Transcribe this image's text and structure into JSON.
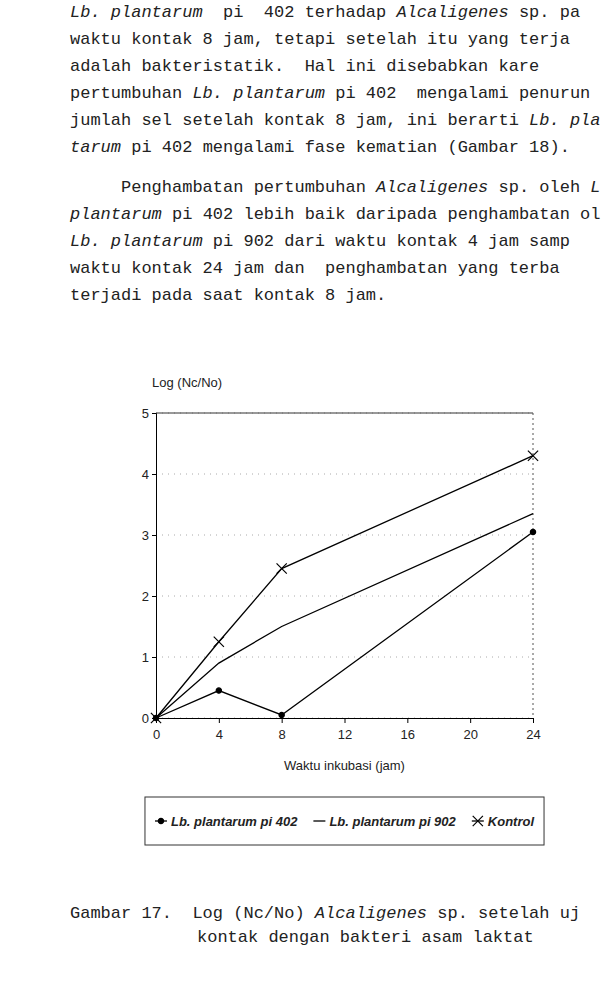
{
  "paragraphs": [
    {
      "lines": [
        [
          {
            "text": "Lb. plantarum",
            "italic": true
          },
          {
            "text": "  pi  402 terhadap "
          },
          {
            "text": "Alcaligenes",
            "italic": true
          },
          {
            "text": " sp. pa"
          }
        ],
        [
          {
            "text": "waktu kontak 8 jam, tetapi setelah itu yang terja"
          }
        ],
        [
          {
            "text": "adalah bakteristatik.  Hal ini disebabkan kare"
          }
        ],
        [
          {
            "text": "pertumbuhan "
          },
          {
            "text": "Lb. plantarum",
            "italic": true
          },
          {
            "text": " pi 402  mengalami penurun"
          }
        ],
        [
          {
            "text": "jumlah sel setelah kontak 8 jam, ini berarti "
          },
          {
            "text": "Lb. pla",
            "italic": true
          }
        ],
        [
          {
            "text": "tarum",
            "italic": true
          },
          {
            "text": " pi 402 mengalami fase kematian (Gambar 18)."
          }
        ]
      ]
    },
    {
      "lines": [
        [
          {
            "text": "     Penghambatan pertumbuhan "
          },
          {
            "text": "Alcaligenes",
            "italic": true
          },
          {
            "text": " sp. oleh "
          },
          {
            "text": "L",
            "italic": true
          }
        ],
        [
          {
            "text": "plantarum",
            "italic": true
          },
          {
            "text": " pi 402 lebih baik daripada penghambatan ol"
          }
        ],
        [
          {
            "text": "Lb. plantarum",
            "italic": true
          },
          {
            "text": " pi 902 dari waktu kontak 4 jam samp"
          }
        ],
        [
          {
            "text": "waktu kontak 24 jam dan  penghambatan yang terba"
          }
        ],
        [
          {
            "text": "terjadi pada saat kontak 8 jam."
          }
        ]
      ]
    }
  ],
  "chart_data": {
    "type": "line",
    "x_label": "Waktu inkubasi (jam)",
    "y_label": "Log (Nc/No)",
    "x": [
      0,
      4,
      8,
      24
    ],
    "series": [
      {
        "name": "Lb. plantarum pi 402",
        "color": "#000000",
        "marker": "dot",
        "line_style": "solid",
        "values": [
          0,
          0.45,
          0.05,
          3.05
        ]
      },
      {
        "name": "Lb. plantarum pi 902",
        "color": "#000000",
        "marker": "none",
        "line_style": "solid",
        "values": [
          0,
          0.9,
          1.5,
          3.35
        ]
      },
      {
        "name": "Kontrol",
        "color": "#000000",
        "marker": "x",
        "line_style": "solid",
        "values": [
          0,
          1.25,
          2.45,
          4.3
        ]
      }
    ],
    "xlim": [
      0,
      24
    ],
    "xticks": [
      0,
      4,
      8,
      12,
      16,
      20,
      24
    ],
    "ylim": [
      0,
      5
    ],
    "yticks": [
      0,
      1,
      2,
      3,
      4,
      5
    ],
    "grid": true,
    "legend": "bottom"
  },
  "caption": {
    "lines": [
      [
        {
          "text": "Gambar 17.  Log (Nc/No) "
        },
        {
          "text": "Alcaligenes",
          "italic": true
        },
        {
          "text": " sp. setelah uj"
        }
      ],
      [
        {
          "text": "kontak dengan bakteri asam laktat"
        }
      ]
    ]
  }
}
